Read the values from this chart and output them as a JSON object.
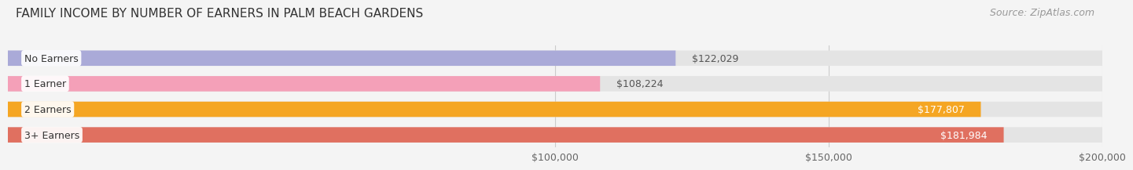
{
  "title": "FAMILY INCOME BY NUMBER OF EARNERS IN PALM BEACH GARDENS",
  "source": "Source: ZipAtlas.com",
  "categories": [
    "No Earners",
    "1 Earner",
    "2 Earners",
    "3+ Earners"
  ],
  "values": [
    122029,
    108224,
    177807,
    181984
  ],
  "bar_colors": [
    "#aaaad8",
    "#f4a0b8",
    "#f5a623",
    "#e07060"
  ],
  "label_colors": [
    "#333333",
    "#333333",
    "#ffffff",
    "#ffffff"
  ],
  "value_labels": [
    "$122,029",
    "$108,224",
    "$177,807",
    "$181,984"
  ],
  "xmin": 0,
  "xmax": 200000,
  "xticks": [
    100000,
    150000,
    200000
  ],
  "xtick_labels": [
    "$100,000",
    "$150,000",
    "$200,000"
  ],
  "background_color": "#f4f4f4",
  "bar_bg_color": "#e4e4e4",
  "bar_height": 0.6,
  "title_fontsize": 11,
  "source_fontsize": 9,
  "label_fontsize": 9,
  "value_fontsize": 9,
  "tick_fontsize": 9,
  "bar_gap": 0.18
}
